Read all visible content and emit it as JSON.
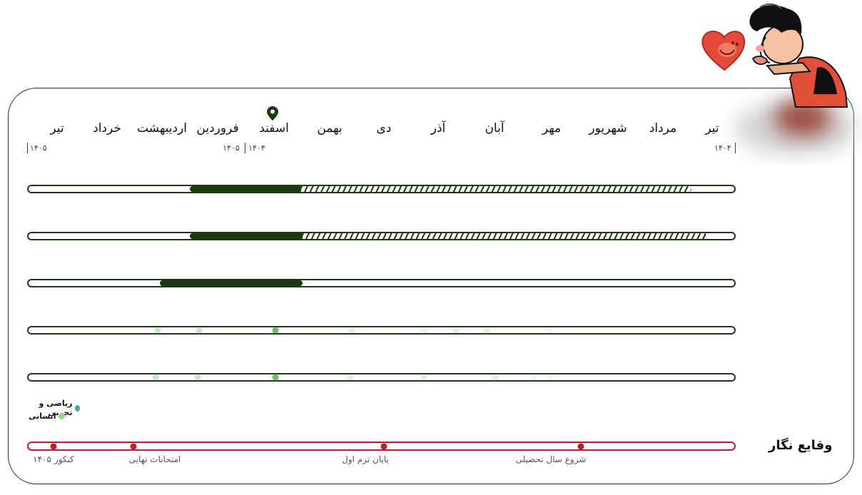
{
  "timeline": {
    "months": [
      "تیر",
      "مرداد",
      "شهریور",
      "مهر",
      "آبان",
      "آذر",
      "دی",
      "بهمن",
      "اسفند",
      "فروردین",
      "اردیبهشت",
      "خرداد",
      "تیر"
    ],
    "year_start_right": "۱۴۰۴",
    "year_marker_left_of_split": "۱۴۰۵",
    "year_marker_right_of_split": "۱۴۰۴",
    "year_end_left": "۱۴۰۵",
    "current_month": "اسفند"
  },
  "progress_rows": [
    {
      "name": "row-1",
      "type": "hatched"
    },
    {
      "name": "row-2",
      "type": "hatched"
    },
    {
      "name": "row-3",
      "type": "solid"
    },
    {
      "name": "row-4",
      "type": "dots"
    },
    {
      "name": "row-5",
      "type": "dots"
    }
  ],
  "legend": {
    "items": [
      {
        "label": "ریاضی و تجربی",
        "color": "#4aa896"
      },
      {
        "label": "انسانی",
        "color": "#9ad48f"
      }
    ]
  },
  "events": {
    "title": "وقایع نگار",
    "items": [
      {
        "label": "شروع سال تحصیلی"
      },
      {
        "label": "پایان ترم اول"
      },
      {
        "label": "امتحانات نهایی"
      },
      {
        "label": "کنکور ۱۴۰۵"
      }
    ],
    "color": "#c01c2a"
  },
  "colors": {
    "primary": "#1c3a10",
    "accent_red": "#c01c2a"
  }
}
